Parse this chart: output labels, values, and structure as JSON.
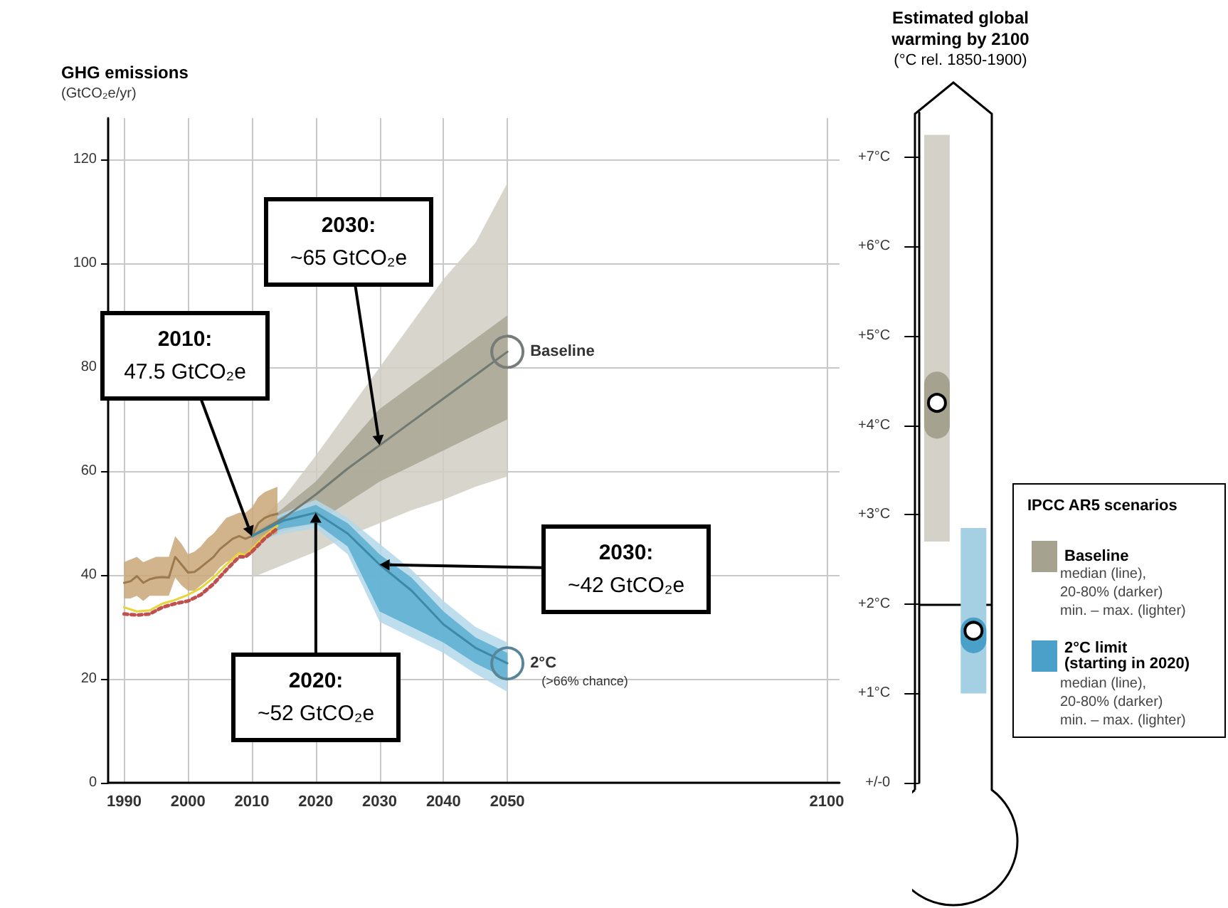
{
  "chart_data": [
    {
      "type": "line",
      "title": "GHG emissions",
      "subtitle": "(GtCO₂e/yr)",
      "xlim": [
        1987.5,
        2102
      ],
      "xticks": [
        1990,
        2000,
        2010,
        2020,
        2030,
        2040,
        2050,
        2100
      ],
      "ylim": [
        0,
        128
      ],
      "yticks": [
        0,
        20,
        40,
        60,
        80,
        100,
        120
      ],
      "grid": true,
      "marker": "none",
      "line_style": "solid",
      "series": [
        {
          "color": "#d1cec4",
          "x": [
            2010,
            2015,
            2020,
            2025,
            2030,
            2035,
            2040,
            2045,
            2050
          ],
          "values": [
            null,
            null,
            null,
            null,
            null,
            null,
            null,
            null,
            null
          ],
          "lower": [
            39.5,
            42,
            44.5,
            47.5,
            50,
            52.5,
            54.5,
            57,
            59
          ],
          "upper": [
            49,
            55,
            63,
            71.5,
            80,
            88.5,
            97,
            104,
            115.5
          ]
        },
        {
          "color": "#a9a694",
          "x": [
            2010,
            2015,
            2020,
            2025,
            2030,
            2035,
            2040,
            2045,
            2050
          ],
          "values": [
            null,
            null,
            null,
            null,
            null,
            null,
            null,
            null,
            null
          ],
          "lower": [
            47,
            48.5,
            50,
            54,
            58,
            61,
            64,
            67,
            70
          ],
          "upper": [
            48,
            53,
            58,
            65,
            72,
            76.5,
            81,
            85.5,
            90
          ]
        },
        {
          "color": "#b3d8ea",
          "x": [
            2010,
            2015,
            2020,
            2025,
            2030,
            2035,
            2040,
            2045,
            2050
          ],
          "values": [
            null,
            null,
            null,
            null,
            null,
            null,
            null,
            null,
            null
          ],
          "lower": [
            46,
            48,
            49,
            44,
            31,
            28,
            25,
            21,
            17.5
          ],
          "upper": [
            49,
            52,
            54.5,
            51,
            46,
            41,
            35,
            30,
            27
          ]
        },
        {
          "color": "#5aaed0",
          "x": [
            2010,
            2015,
            2020,
            2025,
            2030,
            2035,
            2040,
            2045,
            2050
          ],
          "values": [
            null,
            null,
            null,
            null,
            null,
            null,
            null,
            null,
            null
          ],
          "lower": [
            47,
            49,
            50,
            45.5,
            33,
            30,
            27,
            23,
            20
          ],
          "upper": [
            48,
            51.5,
            53.5,
            50,
            44,
            39.5,
            33,
            28,
            25
          ]
        },
        {
          "color": "#c9a777",
          "x": [
            1990,
            1991,
            1992,
            1993,
            1994,
            1995,
            1996,
            1997,
            1998,
            1999,
            2000,
            2001,
            2002,
            2003,
            2004,
            2005,
            2006,
            2007,
            2008,
            2009,
            2010,
            2011,
            2012,
            2013,
            2014
          ],
          "values": [
            null,
            null,
            null,
            null,
            null,
            null,
            null,
            null,
            null,
            null,
            null,
            null,
            null,
            null,
            null,
            null,
            null,
            null,
            null,
            null,
            null,
            null,
            null,
            null,
            null
          ],
          "lower": [
            35.5,
            35.5,
            36,
            35,
            36,
            36,
            36,
            36,
            39.5,
            38,
            37,
            37,
            38,
            39,
            40,
            41.5,
            42.5,
            43,
            44,
            43.5,
            44,
            46,
            47,
            47.5,
            48
          ],
          "upper": [
            42.5,
            43,
            43.5,
            42.5,
            43,
            43.5,
            43.5,
            43.5,
            47.5,
            46,
            44,
            44.5,
            45.5,
            47,
            48,
            49.5,
            51,
            51.5,
            52,
            52,
            53,
            55,
            56,
            56.5,
            57
          ]
        },
        {
          "color": "#9c7a4e",
          "x": [
            1990,
            1991,
            1992,
            1993,
            1994,
            1995,
            1996,
            1997,
            1998,
            1999,
            2000,
            2001,
            2002,
            2003,
            2004,
            2005,
            2006,
            2007,
            2008,
            2009,
            2010,
            2011,
            2012,
            2013,
            2014
          ],
          "values": [
            38.5,
            38.8,
            39.8,
            38.5,
            39.2,
            39.5,
            39.6,
            39.5,
            43.5,
            42,
            40.5,
            40.6,
            41.5,
            42.5,
            43.5,
            45,
            46,
            47,
            47.5,
            47,
            47.5,
            50,
            51,
            51.5,
            51.8
          ]
        },
        {
          "name": "Baseline",
          "color": "#6f7a72",
          "x": [
            2010,
            2015,
            2020,
            2025,
            2030,
            2035,
            2040,
            2045,
            2050
          ],
          "values": [
            47.5,
            51,
            55.5,
            60.5,
            65,
            69.5,
            74,
            78.5,
            83
          ]
        },
        {
          "name": "2°C",
          "color": "#3d8aa8",
          "x": [
            2010,
            2015,
            2020,
            2025,
            2030,
            2035,
            2040,
            2045,
            2050
          ],
          "values": [
            47.5,
            50.5,
            52,
            48,
            42,
            37,
            30.5,
            26,
            23
          ]
        },
        {
          "color": "#e8d53a",
          "x": [
            1990,
            1992,
            1994,
            1996,
            1998,
            2000,
            2002,
            2004,
            2006,
            2008,
            2009,
            2010,
            2012,
            2014
          ],
          "values": [
            33.8,
            33,
            33.2,
            34.5,
            35.2,
            36.2,
            37.5,
            39.5,
            42,
            44.2,
            43.8,
            45,
            47.5,
            49.5
          ]
        },
        {
          "color": "#c0504d",
          "line_style": "dotted",
          "x": [
            1990,
            1992,
            1994,
            1996,
            1998,
            2000,
            2002,
            2004,
            2006,
            2008,
            2009,
            2010,
            2012,
            2014
          ],
          "values": [
            32.5,
            32.3,
            32.5,
            33.8,
            34.5,
            35,
            36.2,
            38.3,
            41,
            43.5,
            43.5,
            44.5,
            47,
            49
          ]
        }
      ],
      "annotations": [
        {
          "text": "2010:\n47.5 GtCO₂e",
          "x": 2010,
          "y": 47.5
        },
        {
          "text": "2020:\n~52 GtCO₂e",
          "x": 2020,
          "y": 52
        },
        {
          "text": "2030:\n~65 GtCO₂e",
          "x": 2030,
          "y": 65
        },
        {
          "text": "2030:\n~42 GtCO₂e",
          "x": 2030,
          "y": 42
        },
        "(>66% chance)"
      ]
    },
    {
      "type": "box",
      "title": "Estimated global\nwarming by 2100",
      "subtitle": "(°C rel. 1850-1900)",
      "legend_title": "IPCC AR5 scenarios",
      "legend": "right",
      "tick_labels": "y",
      "categories": [
        null,
        null
      ],
      "ylim": [
        0,
        7.5
      ],
      "yticks": [
        {
          "value": 0,
          "label": "+/-0"
        },
        {
          "value": 1,
          "label": "+1°C"
        },
        {
          "value": 2,
          "label": "+2°C"
        },
        {
          "value": 3,
          "label": "+3°C"
        },
        {
          "value": 4,
          "label": "+4°C"
        },
        {
          "value": 5,
          "label": "+5°C"
        },
        {
          "value": 6,
          "label": "+6°C"
        },
        {
          "value": 7,
          "label": "+7°C"
        }
      ],
      "series": [
        {
          "name": "Baseline",
          "color": "#a6a290",
          "boxes": [
            {
              "low": 2.7,
              "q1": 3.85,
              "median": 4.25,
              "q3": 4.6,
              "high": 7.25
            },
            null
          ]
        },
        {
          "name": "2°C limit\n(starting in 2020)",
          "color": "#4aa0c8",
          "boxes": [
            null,
            {
              "low": 1.0,
              "q1": 1.45,
              "median": 1.7,
              "q3": 1.85,
              "high": 2.85
            }
          ]
        }
      ],
      "ref_lines": [
        {
          "axis": "y",
          "value": 2,
          "color": "#000000"
        }
      ],
      "annotations": [
        "median (line),\n20-80% (darker)\nmin. – max. (lighter)",
        "median (line),\n20-80% (darker)\nmin. – max. (lighter)"
      ]
    }
  ]
}
